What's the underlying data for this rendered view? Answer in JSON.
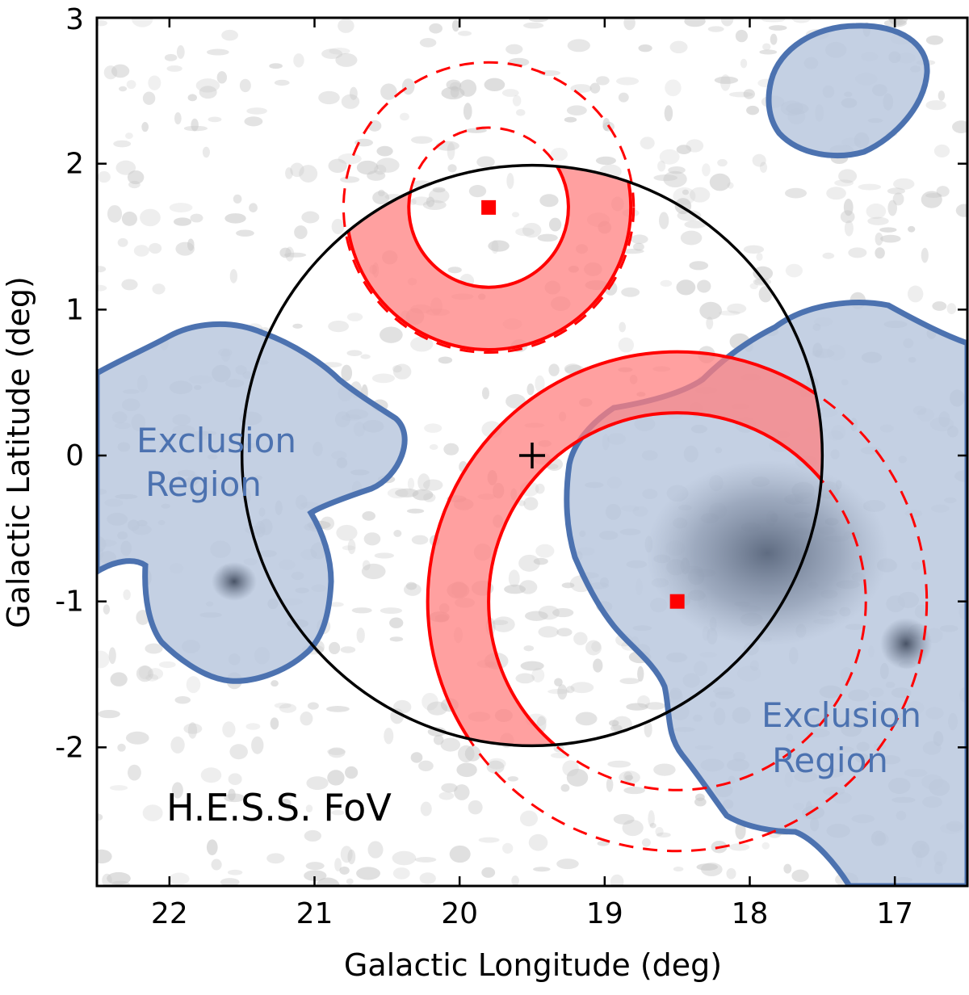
{
  "axes": {
    "xlabel": "Galactic Longitude (deg)",
    "ylabel": "Galactic Latitude (deg)",
    "x_ticks": [
      "22",
      "21",
      "20",
      "19",
      "18",
      "17"
    ],
    "y_ticks": [
      "3",
      "2",
      "1",
      "0",
      "-1",
      "-2"
    ]
  },
  "labels": {
    "exclusion_left_line1": "Exclusion",
    "exclusion_left_line2": "Region",
    "exclusion_right_line1": "Exclusion",
    "exclusion_right_line2": "Region",
    "fov": "H.E.S.S. FoV"
  },
  "colors": {
    "exclusion_fill": "#b7c6dd",
    "exclusion_edge": "#4c72b0",
    "ring_fill": "#ff8080",
    "ring_edge": "#ff0000",
    "fov_circle": "#000000",
    "background_noise": "#c8c8c8"
  },
  "chart_data": {
    "type": "scatter",
    "xlim": [
      22.5,
      16.5
    ],
    "ylim": [
      -2.95,
      3.0
    ],
    "x_reversed": true,
    "fov": {
      "center": [
        19.5,
        0.0
      ],
      "radius": 2.0
    },
    "test_positions": [
      {
        "l": 19.8,
        "b": 1.7,
        "ring_inner": 0.55,
        "ring_outer": 0.98,
        "dashed_radii": [
          0.55,
          1.0
        ]
      },
      {
        "l": 18.5,
        "b": -1.0,
        "ring_inner": 1.3,
        "ring_outer": 1.72,
        "dashed_radii": [
          1.3,
          1.72
        ]
      }
    ]
  }
}
